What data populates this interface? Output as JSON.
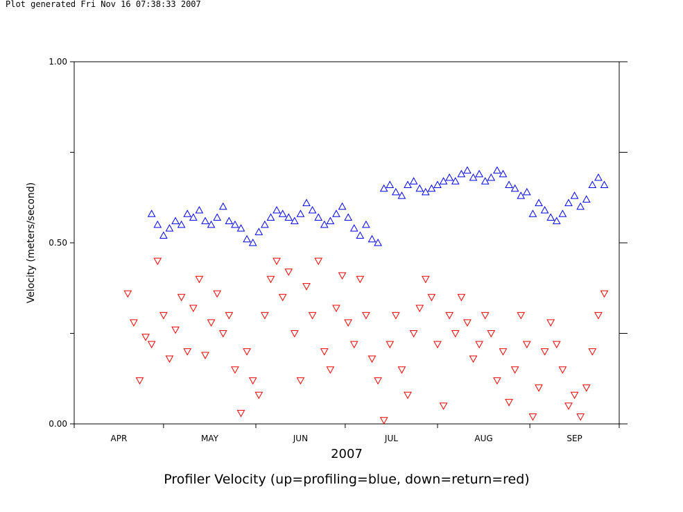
{
  "header": {
    "generated_text": "Plot generated Fri Nov 16 07:38:33 2007"
  },
  "chart_data": {
    "type": "scatter",
    "title": "Profiler Velocity (up=profiling=blue, down=return=red)",
    "xlabel": "2007",
    "ylabel": "Velocity (meters/second)",
    "ylim": [
      0.0,
      1.0
    ],
    "y_ticks": [
      "0.00",
      "0.50",
      "1.00"
    ],
    "x_range_days": [
      0,
      183
    ],
    "x_month_labels": [
      "APR",
      "MAY",
      "JUN",
      "JUL",
      "AUG",
      "SEP"
    ],
    "grid": false,
    "legend": "none",
    "colors": {
      "up": "#0000ee",
      "down": "#ee0000",
      "axis": "#000000"
    },
    "up": {
      "day": [
        26,
        28,
        30,
        32,
        34,
        36,
        38,
        40,
        42,
        44,
        46,
        48,
        50,
        52,
        54,
        56,
        58,
        60,
        62,
        64,
        66,
        68,
        70,
        72,
        74,
        76,
        78,
        80,
        82,
        84,
        86,
        88,
        90,
        92,
        94,
        96,
        98,
        100,
        102,
        104,
        106,
        108,
        110,
        112,
        114,
        116,
        118,
        120,
        122,
        124,
        126,
        128,
        130,
        132,
        134,
        136,
        138,
        140,
        142,
        144,
        146,
        148,
        150,
        152,
        154,
        156,
        158,
        160,
        162,
        164,
        166,
        168,
        170,
        172,
        174,
        176,
        178
      ],
      "velocity": [
        0.58,
        0.55,
        0.52,
        0.54,
        0.56,
        0.55,
        0.58,
        0.57,
        0.59,
        0.56,
        0.55,
        0.57,
        0.6,
        0.56,
        0.55,
        0.54,
        0.51,
        0.5,
        0.53,
        0.55,
        0.57,
        0.59,
        0.58,
        0.57,
        0.56,
        0.58,
        0.61,
        0.59,
        0.57,
        0.55,
        0.56,
        0.58,
        0.6,
        0.57,
        0.54,
        0.52,
        0.55,
        0.51,
        0.5,
        0.65,
        0.66,
        0.64,
        0.63,
        0.66,
        0.67,
        0.65,
        0.64,
        0.65,
        0.66,
        0.67,
        0.68,
        0.67,
        0.69,
        0.7,
        0.68,
        0.69,
        0.67,
        0.68,
        0.7,
        0.69,
        0.66,
        0.65,
        0.63,
        0.64,
        0.58,
        0.61,
        0.59,
        0.57,
        0.56,
        0.58,
        0.61,
        0.63,
        0.6,
        0.62,
        0.66,
        0.68,
        0.66
      ]
    },
    "down": {
      "day": [
        18,
        20,
        22,
        24,
        26,
        28,
        30,
        32,
        34,
        36,
        38,
        40,
        42,
        44,
        46,
        48,
        50,
        52,
        54,
        56,
        58,
        60,
        62,
        64,
        66,
        68,
        70,
        72,
        74,
        76,
        78,
        80,
        82,
        84,
        86,
        88,
        90,
        92,
        94,
        96,
        98,
        100,
        102,
        104,
        106,
        108,
        110,
        112,
        114,
        116,
        118,
        120,
        122,
        124,
        126,
        128,
        130,
        132,
        134,
        136,
        138,
        140,
        142,
        144,
        146,
        148,
        150,
        152,
        154,
        156,
        158,
        160,
        162,
        164,
        166,
        168,
        170,
        172,
        174,
        176,
        178
      ],
      "velocity": [
        0.36,
        0.28,
        0.12,
        0.24,
        0.22,
        0.45,
        0.3,
        0.18,
        0.26,
        0.35,
        0.2,
        0.32,
        0.4,
        0.19,
        0.28,
        0.36,
        0.25,
        0.3,
        0.15,
        0.03,
        0.2,
        0.12,
        0.08,
        0.3,
        0.4,
        0.45,
        0.35,
        0.42,
        0.25,
        0.12,
        0.38,
        0.3,
        0.45,
        0.2,
        0.15,
        0.32,
        0.41,
        0.28,
        0.22,
        0.4,
        0.3,
        0.18,
        0.12,
        0.01,
        0.22,
        0.3,
        0.15,
        0.08,
        0.25,
        0.32,
        0.4,
        0.35,
        0.22,
        0.05,
        0.3,
        0.25,
        0.35,
        0.28,
        0.18,
        0.22,
        0.3,
        0.25,
        0.12,
        0.2,
        0.06,
        0.15,
        0.3,
        0.22,
        0.02,
        0.1,
        0.2,
        0.28,
        0.22,
        0.15,
        0.05,
        0.08,
        0.02,
        0.1,
        0.2,
        0.3,
        0.36
      ]
    }
  }
}
